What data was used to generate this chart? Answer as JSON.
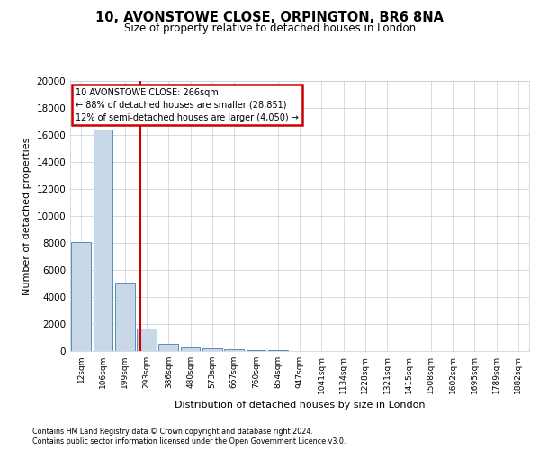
{
  "title": "10, AVONSTOWE CLOSE, ORPINGTON, BR6 8NA",
  "subtitle": "Size of property relative to detached houses in London",
  "xlabel": "Distribution of detached houses by size in London",
  "ylabel": "Number of detached properties",
  "footer_line1": "Contains HM Land Registry data © Crown copyright and database right 2024.",
  "footer_line2": "Contains public sector information licensed under the Open Government Licence v3.0.",
  "property_label": "10 AVONSTOWE CLOSE: 266sqm",
  "annotation_line2": "← 88% of detached houses are smaller (28,851)",
  "annotation_line3": "12% of semi-detached houses are larger (4,050) →",
  "bar_color": "#c8d8e8",
  "bar_edge_color": "#5b8db8",
  "vline_color": "#cc0000",
  "annotation_box_edge": "#cc0000",
  "categories": [
    "12sqm",
    "106sqm",
    "199sqm",
    "293sqm",
    "386sqm",
    "480sqm",
    "573sqm",
    "667sqm",
    "760sqm",
    "854sqm",
    "947sqm",
    "1041sqm",
    "1134sqm",
    "1228sqm",
    "1321sqm",
    "1415sqm",
    "1508sqm",
    "1602sqm",
    "1695sqm",
    "1789sqm",
    "1882sqm"
  ],
  "bar_heights": [
    8050,
    16400,
    5050,
    1700,
    550,
    280,
    200,
    150,
    100,
    60,
    0,
    0,
    0,
    0,
    0,
    0,
    0,
    0,
    0,
    0,
    0
  ],
  "ylim": [
    0,
    20000
  ],
  "yticks": [
    0,
    2000,
    4000,
    6000,
    8000,
    10000,
    12000,
    14000,
    16000,
    18000,
    20000
  ],
  "bg_color": "#ffffff",
  "grid_color": "#c8ccd8"
}
